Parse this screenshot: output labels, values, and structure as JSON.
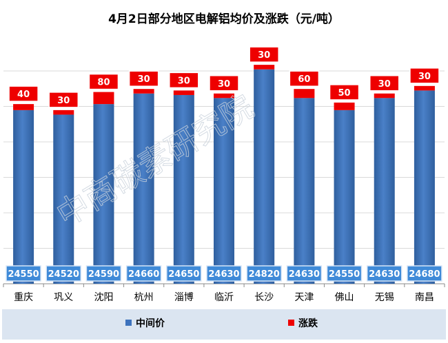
{
  "chart_data": {
    "type": "bar",
    "title": "4月2日部分地区电解铝均价及涨跌（元/吨）",
    "categories": [
      "重庆",
      "巩义",
      "沈阳",
      "杭州",
      "淄博",
      "临沂",
      "长沙",
      "天津",
      "佛山",
      "无锡",
      "南昌"
    ],
    "series": [
      {
        "name": "中间价",
        "values": [
          24550,
          24520,
          24590,
          24660,
          24650,
          24630,
          24820,
          24630,
          24550,
          24630,
          24680
        ]
      },
      {
        "name": "涨跌",
        "values": [
          40,
          30,
          80,
          30,
          30,
          30,
          30,
          60,
          50,
          30,
          30
        ]
      }
    ],
    "ylim": [
      23400,
      24960
    ],
    "grid": true,
    "legend": "bottom",
    "colors": {
      "mid": "#3d72bd",
      "change": "#ee0000",
      "legend_band": "#dbe5f1"
    },
    "watermark": "中商碳素研究院"
  }
}
